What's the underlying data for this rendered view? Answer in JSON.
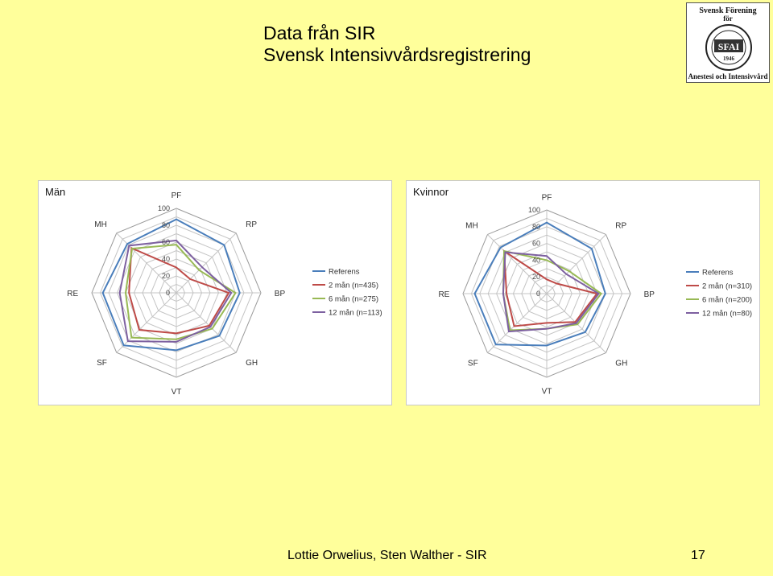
{
  "slide": {
    "title_line1": "Data från SIR",
    "title_line2": "Svensk Intensivvårdsregistrering",
    "footer": "Lottie Orwelius, Sten Walther - SIR",
    "page_number": "17"
  },
  "logo": {
    "top_text": "Svensk Förening",
    "mid_text": "för",
    "badge_text": "SFAI",
    "year": "1946",
    "bottom_text": "Anestesi och Intensivvård"
  },
  "chart_data": [
    {
      "type": "radar",
      "title": "Män",
      "axes": [
        "PF",
        "RP",
        "BP",
        "GH",
        "VT",
        "SF",
        "RE",
        "MH"
      ],
      "r_ticks": [
        0,
        20,
        40,
        60,
        80,
        100
      ],
      "rlim": [
        0,
        100
      ],
      "grid": true,
      "legend_position": "right",
      "series": [
        {
          "name": "Referens",
          "color": "#4a7ebb",
          "values": [
            87,
            80,
            75,
            72,
            68,
            88,
            87,
            82
          ]
        },
        {
          "name": "2 mån (n=435)",
          "color": "#be4b48",
          "values": [
            30,
            23,
            62,
            55,
            48,
            62,
            56,
            75
          ]
        },
        {
          "name": "6 mån (n=275)",
          "color": "#98b954",
          "values": [
            57,
            38,
            70,
            60,
            55,
            75,
            60,
            74
          ]
        },
        {
          "name": "12 mån (n=113)",
          "color": "#7d60a0",
          "values": [
            62,
            43,
            65,
            57,
            58,
            81,
            67,
            79
          ]
        }
      ]
    },
    {
      "type": "radar",
      "title": "Kvinnor",
      "axes": [
        "PF",
        "RP",
        "BP",
        "GH",
        "VT",
        "SF",
        "RE",
        "MH"
      ],
      "r_ticks": [
        0,
        20,
        40,
        60,
        80,
        100
      ],
      "rlim": [
        0,
        100
      ],
      "grid": true,
      "legend_position": "right",
      "series": [
        {
          "name": "Referens",
          "color": "#4a7ebb",
          "values": [
            85,
            76,
            70,
            65,
            62,
            86,
            86,
            78
          ]
        },
        {
          "name": "2 mån (n=310)",
          "color": "#be4b48",
          "values": [
            17,
            17,
            60,
            48,
            35,
            55,
            48,
            72
          ]
        },
        {
          "name": "6 mån (n=200)",
          "color": "#98b954",
          "values": [
            40,
            38,
            65,
            52,
            42,
            62,
            52,
            72
          ]
        },
        {
          "name": "12 mån (n=80)",
          "color": "#7d60a0",
          "values": [
            45,
            33,
            62,
            50,
            42,
            64,
            52,
            70
          ]
        }
      ]
    }
  ]
}
